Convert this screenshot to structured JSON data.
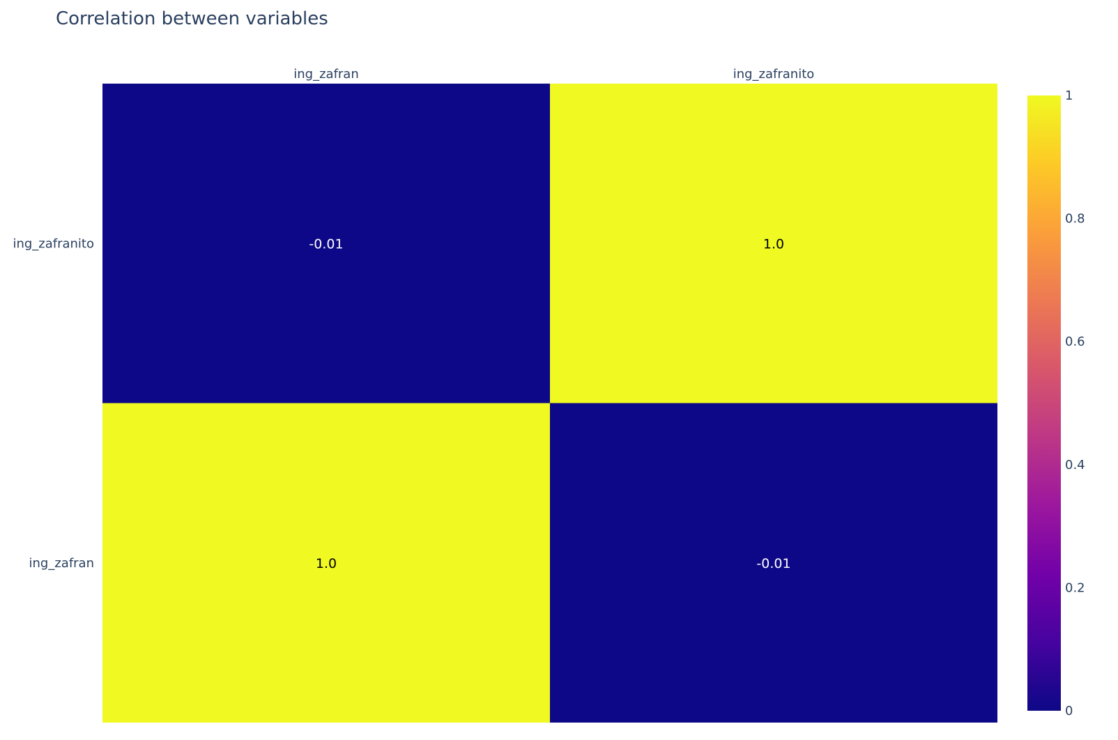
{
  "chart_data": {
    "type": "heatmap",
    "title": "Correlation between variables",
    "x_categories": [
      "ing_zafran",
      "ing_zafranito"
    ],
    "y_categories": [
      "ing_zafranito",
      "ing_zafran"
    ],
    "z": [
      [
        -0.01,
        1.0
      ],
      [
        1.0,
        -0.01
      ]
    ],
    "cell_labels": [
      [
        "-0.01",
        "1.0"
      ],
      [
        "1.0",
        "-0.01"
      ]
    ],
    "colorscale": [
      "#0d0887",
      "#46039f",
      "#7201a8",
      "#9c179e",
      "#bd3786",
      "#d8576b",
      "#ed7953",
      "#fb9f3a",
      "#fdca26",
      "#f0f921"
    ],
    "zrange": [
      0,
      1
    ],
    "colorbar_ticks": [
      0,
      0.2,
      0.4,
      0.6,
      0.8,
      1
    ],
    "colorbar_tick_labels": [
      "0",
      "0.2",
      "0.4",
      "0.6",
      "0.8",
      "1"
    ],
    "x_axis_side": "top"
  }
}
